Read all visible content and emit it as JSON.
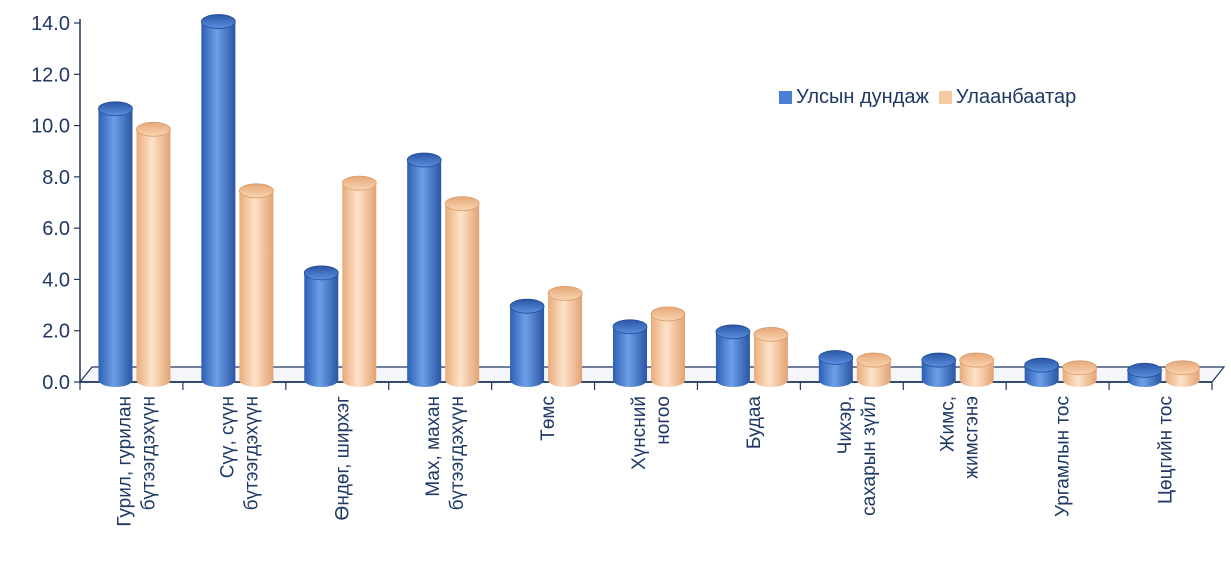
{
  "chart_data": {
    "type": "bar",
    "title": "",
    "xlabel": "",
    "ylabel": "",
    "ylim": [
      0,
      14
    ],
    "yticks": [
      "0.0",
      "2.0",
      "4.0",
      "6.0",
      "8.0",
      "10.0",
      "12.0",
      "14.0"
    ],
    "grid": false,
    "legend_position": "right",
    "categories": [
      [
        "Гурил, гурилан",
        "бүтээгдэхүүн"
      ],
      [
        "Сүү, сүүн",
        "бүтээгдэхүүн"
      ],
      [
        "Өндөг, ширхэг"
      ],
      [
        "Мах, махан",
        "бүтээгдэхүүн"
      ],
      [
        "Төмс"
      ],
      [
        "Хүнсний",
        "ногоо"
      ],
      [
        "Будаа"
      ],
      [
        "Чихэр,",
        "сахарын зүйл"
      ],
      [
        "Жимс,",
        "жимсгэнэ"
      ],
      [
        "Ургамлын тос"
      ],
      [
        "Цөцгийн тос"
      ]
    ],
    "series": [
      {
        "name": "Улсын дундаж",
        "color": "#4a7fd4",
        "values": [
          10.5,
          13.9,
          4.1,
          8.5,
          2.8,
          2.0,
          1.8,
          0.8,
          0.7,
          0.5,
          0.3
        ]
      },
      {
        "name": "Улаанбаатар",
        "color": "#f7c9a0",
        "values": [
          9.7,
          7.3,
          7.6,
          6.8,
          3.3,
          2.5,
          1.7,
          0.7,
          0.7,
          0.4,
          0.4
        ]
      }
    ]
  }
}
